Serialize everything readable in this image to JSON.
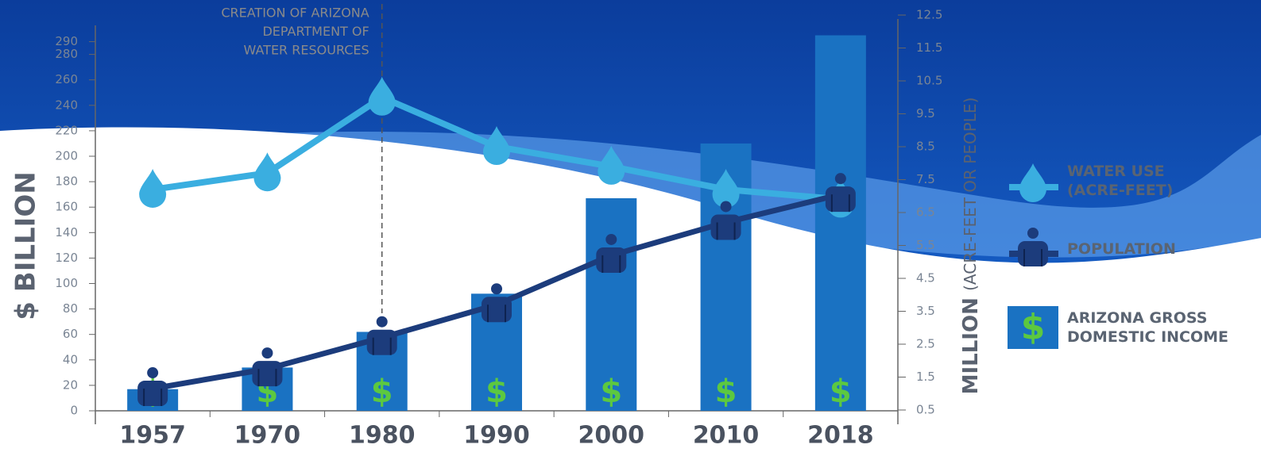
{
  "chart_data": {
    "type": "combo",
    "ylabel": "$ BILLION",
    "y2label": "MILLION",
    "y2label_unit": "(ACRE-FEET OR PEOPLE)",
    "categories": [
      "1957",
      "1970",
      "1980",
      "1990",
      "2000",
      "2010",
      "2018"
    ],
    "ylim": [
      0,
      300
    ],
    "yticks": [
      0,
      20,
      40,
      60,
      80,
      100,
      120,
      140,
      160,
      180,
      200,
      220,
      240,
      260,
      280,
      290
    ],
    "y2lim": [
      0.5,
      12.5
    ],
    "y2ticks": [
      0.5,
      1.5,
      2.5,
      3.5,
      4.5,
      5.5,
      6.5,
      7.5,
      8.5,
      9.5,
      10.5,
      11.5,
      12.5
    ],
    "gdi_symbol": "$",
    "series": [
      {
        "name": "ARIZONA GROSS DOMESTIC INCOME",
        "type": "bar",
        "color": "#1a72c2",
        "values": [
          17,
          34,
          62,
          92,
          167,
          210,
          295
        ]
      },
      {
        "name": "WATER USE (ACRE-FEET)",
        "type": "line",
        "axis": "y2",
        "color": "#3aaee0",
        "values": [
          7.2,
          7.7,
          10.0,
          8.5,
          7.9,
          7.2,
          6.9
        ]
      },
      {
        "name": "POPULATION",
        "type": "line",
        "axis": "y2",
        "color": "#1c3c7c",
        "values": [
          1.15,
          1.75,
          2.7,
          3.7,
          5.2,
          6.2,
          7.05
        ]
      }
    ],
    "annotation": {
      "category": "1980",
      "lines": [
        "CREATION OF ARIZONA",
        "DEPARTMENT OF",
        "WATER RESOURCES"
      ]
    }
  }
}
